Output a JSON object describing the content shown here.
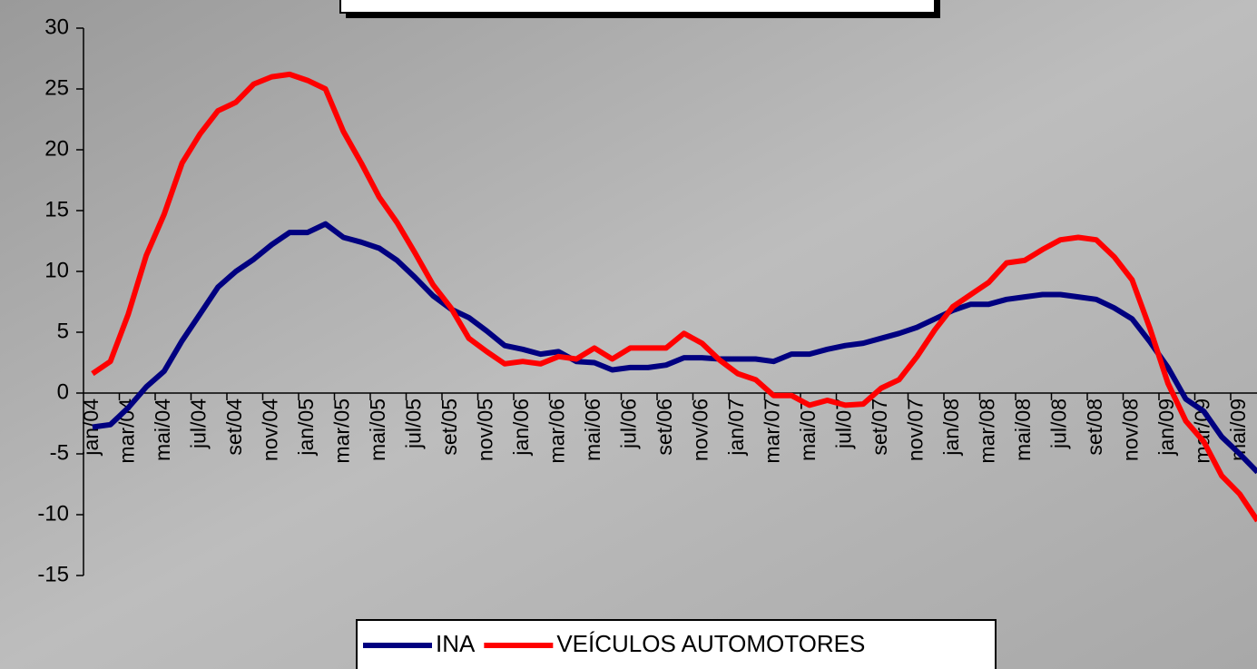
{
  "chart_data": {
    "type": "line",
    "categories": [
      "jan/04",
      null,
      "mar/04",
      null,
      "mai/04",
      null,
      "jul/04",
      null,
      "set/04",
      null,
      "nov/04",
      null,
      "jan/05",
      null,
      "mar/05",
      null,
      "mai/05",
      null,
      "jul/05",
      null,
      "set/05",
      null,
      "nov/05",
      null,
      "jan/06",
      null,
      "mar/06",
      null,
      "mai/06",
      null,
      "jul/06",
      null,
      "set/06",
      null,
      "nov/06",
      null,
      "jan/07",
      null,
      "mar/07",
      null,
      "mai/07",
      null,
      "jul/07",
      null,
      "set/07",
      null,
      "nov/07",
      null,
      "jan/08",
      null,
      "mar/08",
      null,
      "mai/08",
      null,
      "jul/08",
      null,
      "set/08",
      null,
      "nov/08",
      null,
      "jan/09",
      null,
      "mar/09",
      null,
      "mai/09",
      null
    ],
    "series": [
      {
        "name": "INA",
        "color": "#000080",
        "values": [
          -2.8,
          -2.6,
          -1.2,
          0.5,
          1.8,
          4.3,
          6.5,
          8.7,
          10,
          11,
          12.2,
          13.2,
          13.2,
          13.9,
          12.8,
          12.4,
          11.9,
          10.9,
          9.5,
          8,
          6.9,
          6.2,
          5.1,
          3.9,
          3.6,
          3.2,
          3.4,
          2.6,
          2.5,
          1.9,
          2.1,
          2.1,
          2.3,
          2.9,
          2.9,
          2.8,
          2.8,
          2.8,
          2.6,
          3.2,
          3.2,
          3.6,
          3.9,
          4.1,
          4.5,
          4.9,
          5.4,
          6.1,
          6.8,
          7.3,
          7.3,
          7.7,
          7.9,
          8.1,
          8.1,
          7.9,
          7.7,
          7.0,
          6.1,
          4.2,
          2.1,
          -0.5,
          -1.5,
          -3.6,
          -5,
          -6.5
        ]
      },
      {
        "name": "VEÍCULOS AUTOMOTORES",
        "color": "#ff0000",
        "values": [
          1.6,
          2.6,
          6.5,
          11.3,
          14.7,
          18.9,
          21.3,
          23.2,
          23.9,
          25.4,
          26.0,
          26.2,
          25.7,
          25.0,
          21.5,
          18.9,
          16.1,
          14.0,
          11.5,
          8.9,
          7.0,
          4.5,
          3.4,
          2.4,
          2.6,
          2.4,
          3.0,
          2.8,
          3.7,
          2.8,
          3.7,
          3.7,
          3.7,
          4.9,
          4.1,
          2.7,
          1.6,
          1.1,
          -0.2,
          -0.2,
          -1.0,
          -0.6,
          -1.0,
          -0.9,
          0.4,
          1.1,
          3.0,
          5.2,
          7.1,
          8.1,
          9.1,
          10.7,
          10.9,
          11.8,
          12.6,
          12.8,
          12.6,
          11.2,
          9.3,
          5.3,
          0.8,
          -2.3,
          -4.0,
          -6.8,
          -8.3,
          -10.5
        ]
      }
    ],
    "ylim": [
      -15,
      30
    ],
    "yticks": [
      -15,
      -10,
      -5,
      0,
      5,
      10,
      15,
      20,
      25,
      30
    ],
    "grid": false
  }
}
